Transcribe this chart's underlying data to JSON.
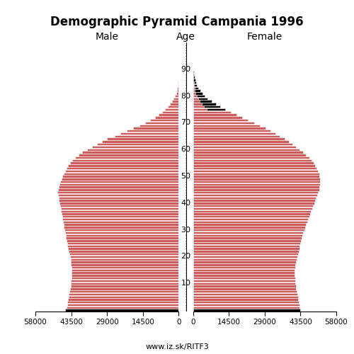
{
  "title": "Demographic Pyramid Campania 1996",
  "male_label": "Male",
  "female_label": "Female",
  "age_label": "Age",
  "footer": "www.iz.sk/RITF3",
  "ages": [
    0,
    1,
    2,
    3,
    4,
    5,
    6,
    7,
    8,
    9,
    10,
    11,
    12,
    13,
    14,
    15,
    16,
    17,
    18,
    19,
    20,
    21,
    22,
    23,
    24,
    25,
    26,
    27,
    28,
    29,
    30,
    31,
    32,
    33,
    34,
    35,
    36,
    37,
    38,
    39,
    40,
    41,
    42,
    43,
    44,
    45,
    46,
    47,
    48,
    49,
    50,
    51,
    52,
    53,
    54,
    55,
    56,
    57,
    58,
    59,
    60,
    61,
    62,
    63,
    64,
    65,
    66,
    67,
    68,
    69,
    70,
    71,
    72,
    73,
    74,
    75,
    76,
    77,
    78,
    79,
    80,
    81,
    82,
    83,
    84,
    85,
    86,
    87,
    88,
    89,
    90,
    91,
    92,
    93,
    94,
    95,
    96,
    97,
    98,
    99
  ],
  "male": [
    46000,
    45500,
    45200,
    45000,
    44800,
    44600,
    44400,
    44200,
    44000,
    43800,
    43700,
    43600,
    43500,
    43400,
    43300,
    43400,
    43500,
    43600,
    43700,
    43800,
    44000,
    44200,
    44500,
    44800,
    45000,
    45200,
    45400,
    45600,
    45800,
    46000,
    46200,
    46400,
    46600,
    46800,
    47000,
    47200,
    47400,
    47600,
    47800,
    48000,
    48200,
    48400,
    48600,
    48800,
    49000,
    48800,
    48500,
    48200,
    47900,
    47500,
    47000,
    46500,
    46000,
    45400,
    44800,
    44000,
    43000,
    42000,
    40500,
    39000,
    37000,
    35000,
    33000,
    31000,
    29000,
    26000,
    23500,
    21000,
    18500,
    16000,
    13500,
    11500,
    9500,
    8000,
    6800,
    5500,
    4500,
    3500,
    2700,
    2000,
    1500,
    1100,
    800,
    580,
    420,
    300,
    210,
    140,
    90,
    55,
    32,
    18,
    10,
    5,
    3,
    2,
    1,
    1,
    0,
    0
  ],
  "female": [
    43500,
    43200,
    43000,
    42800,
    42600,
    42400,
    42200,
    42000,
    41800,
    41600,
    41500,
    41400,
    41300,
    41200,
    41100,
    41200,
    41300,
    41500,
    41700,
    41900,
    42200,
    42500,
    42800,
    43000,
    43200,
    43500,
    43800,
    44000,
    44300,
    44600,
    45000,
    45400,
    45800,
    46200,
    46600,
    47000,
    47400,
    47800,
    48200,
    48600,
    49000,
    49400,
    49800,
    50200,
    50600,
    51000,
    51200,
    51400,
    51500,
    51400,
    51200,
    51000,
    50600,
    50100,
    49500,
    48800,
    48000,
    47000,
    45800,
    44500,
    43200,
    41800,
    40300,
    38700,
    37000,
    35200,
    33300,
    31300,
    29200,
    27000,
    24700,
    22300,
    19800,
    17500,
    15200,
    13000,
    11000,
    9200,
    7500,
    5900,
    4700,
    3700,
    2900,
    2200,
    1650,
    1200,
    870,
    620,
    430,
    290,
    190,
    120,
    74,
    44,
    25,
    14,
    7,
    3,
    1,
    0
  ],
  "bar_color": "#cd5c5c",
  "black_color": "#000000",
  "background_color": "#ffffff",
  "xlim": 58000,
  "x_ticks": [
    0,
    14500,
    29000,
    43500,
    58000
  ],
  "x_tick_labels": [
    "0",
    "14500",
    "29000",
    "43500",
    "58000"
  ],
  "age_ticks": [
    10,
    20,
    30,
    40,
    50,
    60,
    70,
    80,
    90
  ],
  "bar_height": 0.9,
  "ylim_min": -0.5,
  "ylim_max": 100
}
